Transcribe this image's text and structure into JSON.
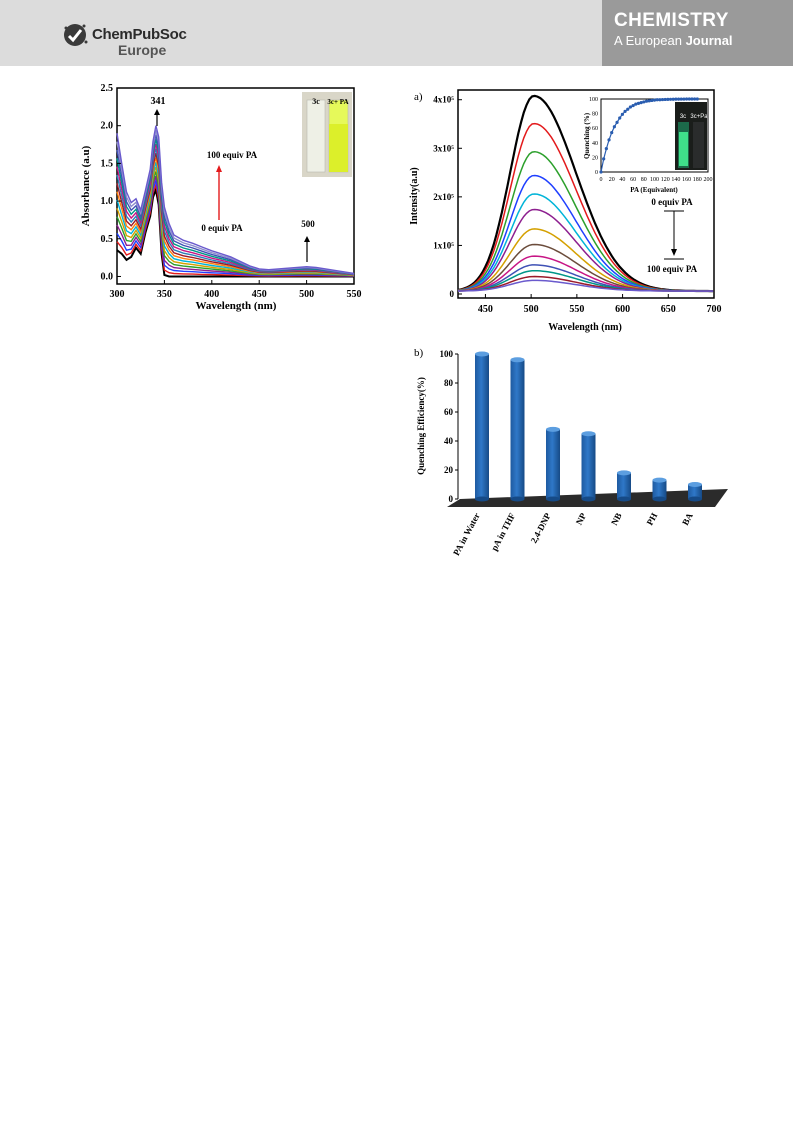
{
  "header": {
    "publisher_name": "ChemPubSoc",
    "publisher_region": "Europe",
    "journal_title": "CHEMISTRY",
    "journal_sub_prefix": "A European",
    "journal_sub_suffix": "Journal"
  },
  "chart_data": [
    {
      "type": "line",
      "xlabel": "Wavelength (nm)",
      "ylabel": "Absorbance (a.u)",
      "xlim": [
        300,
        550
      ],
      "ylim": [
        -0.1,
        2.5
      ],
      "xticks": [
        "300",
        "350",
        "400",
        "450",
        "500",
        "550"
      ],
      "yticks": [
        "0.0",
        "0.5",
        "1.0",
        "1.5",
        "2.0",
        "2.5"
      ],
      "annotations": {
        "peak": "341",
        "upper_dose": "100 equiv PA",
        "lower_dose": "0 equiv PA",
        "band": "500"
      },
      "inset_photo_labels": [
        "3c",
        "3c+ PA"
      ],
      "series_colors": [
        "#000000",
        "#e31a1c",
        "#1f3fff",
        "#8d1f8f",
        "#2ca02c",
        "#d4a000",
        "#00b4d8",
        "#ff7f0e",
        "#9a1a2a",
        "#2c7fb8",
        "#c71585",
        "#009688",
        "#3f51b5",
        "#8e8ecf",
        "#6a5acd"
      ],
      "x": [
        300,
        305,
        310,
        315,
        320,
        325,
        330,
        335,
        338,
        341,
        344,
        347,
        350,
        355,
        360,
        370,
        380,
        390,
        400,
        410,
        420,
        430,
        440,
        450,
        460,
        470,
        480,
        490,
        500,
        510,
        520,
        530,
        540,
        550
      ],
      "curve_base": [
        0.35,
        0.3,
        0.22,
        0.26,
        0.38,
        0.3,
        0.58,
        0.8,
        1.05,
        1.15,
        0.95,
        0.3,
        0.02,
        0,
        0,
        0,
        0,
        0,
        0,
        0,
        0,
        0,
        0,
        0,
        0,
        0,
        0,
        0,
        0,
        0,
        0,
        0,
        0,
        0
      ],
      "curve_growth": [
        1.55,
        1.2,
        0.9,
        0.72,
        0.65,
        0.58,
        0.56,
        0.62,
        0.74,
        0.85,
        0.9,
        0.95,
        0.9,
        0.7,
        0.55,
        0.48,
        0.44,
        0.39,
        0.34,
        0.3,
        0.26,
        0.2,
        0.14,
        0.1,
        0.09,
        0.1,
        0.11,
        0.12,
        0.13,
        0.12,
        0.1,
        0.08,
        0.06,
        0.04
      ]
    },
    {
      "type": "line",
      "panel_label": "a)",
      "xlabel": "Wavelength (nm)",
      "ylabel": "Intensity(a.u)",
      "xlim": [
        420,
        700
      ],
      "ylim": [
        0,
        420000
      ],
      "xticks": [
        "450",
        "500",
        "550",
        "600",
        "650",
        "700"
      ],
      "yticks": [
        "0",
        "1x10⁵",
        "2x10⁵",
        "3x10⁵",
        "4x10⁵"
      ],
      "annotations": {
        "top_dose": "0 equiv PA",
        "bottom_dose": "100 equiv PA"
      },
      "peak_wavelength": 503,
      "peak_intensity": [
        402000,
        345000,
        287000,
        238000,
        200000,
        168000,
        128000,
        96000,
        72000,
        54000,
        42000,
        30000,
        22000
      ],
      "series_colors": [
        "#000000",
        "#e31a1c",
        "#2ca02c",
        "#1f3fff",
        "#00b4d8",
        "#8d1f8f",
        "#d4a000",
        "#6b4c3b",
        "#c71585",
        "#3f51b5",
        "#009688",
        "#9a1a2a",
        "#6a5acd"
      ],
      "inset": {
        "xlabel": "PA (Equivalent)",
        "ylabel": "Quenching (%)",
        "xlim": [
          0,
          200
        ],
        "ylim": [
          0,
          100
        ],
        "xticks": [
          "0",
          "20",
          "40",
          "60",
          "80",
          "100",
          "120",
          "140",
          "160",
          "180",
          "200"
        ],
        "yticks": [
          "0",
          "20",
          "40",
          "60",
          "80",
          "100"
        ],
        "x": [
          0,
          5,
          10,
          15,
          20,
          25,
          30,
          35,
          40,
          45,
          50,
          55,
          60,
          65,
          70,
          75,
          80,
          85,
          90,
          95,
          100,
          105,
          110,
          115,
          120,
          125,
          130,
          135,
          140,
          145,
          150,
          155,
          160,
          165,
          170,
          175,
          180
        ],
        "y": [
          0,
          18,
          32,
          44,
          54,
          62,
          68,
          74,
          79,
          83,
          86,
          89,
          91,
          93,
          94,
          95,
          96,
          97,
          97.5,
          98,
          98.5,
          99,
          99,
          99.2,
          99.4,
          99.5,
          99.6,
          99.7,
          99.8,
          99.8,
          99.9,
          99.9,
          100,
          100,
          100,
          100,
          100
        ],
        "photo_labels": [
          "3c",
          "3c+Pa"
        ]
      }
    },
    {
      "type": "bar",
      "panel_label": "b)",
      "ylabel": "Quenching Efficiency(%)",
      "ylim": [
        0,
        100
      ],
      "yticks": [
        "0",
        "20",
        "40",
        "60",
        "80",
        "100"
      ],
      "categories": [
        "PA in Water",
        "pA in THF",
        "2,4-DNP",
        "NP",
        "NB",
        "PH",
        "BA"
      ],
      "values": [
        100,
        96,
        48,
        45,
        18,
        13,
        10
      ],
      "bar_color": "#2f78c8"
    }
  ]
}
